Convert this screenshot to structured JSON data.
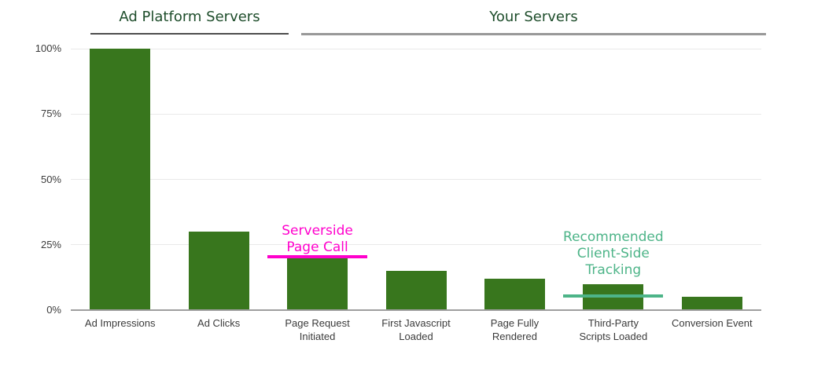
{
  "chart_data": {
    "type": "bar",
    "title": "",
    "xlabel": "",
    "ylabel": "",
    "categories": [
      "Ad Impressions",
      "Ad Clicks",
      "Page Request Initiated",
      "First Javascript Loaded",
      "Page Fully Rendered",
      "Third-Party Scripts Loaded",
      "Conversion Event"
    ],
    "values": [
      100,
      30,
      20,
      15,
      12,
      10,
      5
    ],
    "unit": "%",
    "ylim": [
      0,
      100
    ],
    "grid": true,
    "y_ticks": [
      "0%",
      "25%",
      "50%",
      "75%",
      "100%"
    ],
    "y_tick_values": [
      0,
      25,
      50,
      75,
      100
    ],
    "bar_color": "#38761d",
    "x_label_lines": [
      [
        "Ad Impressions"
      ],
      [
        "Ad Clicks"
      ],
      [
        "Page Request",
        "Initiated"
      ],
      [
        "First Javascript",
        "Loaded"
      ],
      [
        "Page Fully",
        "Rendered"
      ],
      [
        "Third-Party",
        "Scripts Loaded"
      ],
      [
        "Conversion Event"
      ]
    ],
    "group_spans": [
      {
        "label": "Ad Platform Servers",
        "categories": [
          "Ad Impressions",
          "Ad Clicks"
        ]
      },
      {
        "label": "Your Servers",
        "categories": [
          "Page Request Initiated",
          "First Javascript Loaded",
          "Page Fully Rendered",
          "Third-Party Scripts Loaded",
          "Conversion Event"
        ]
      }
    ],
    "annotations": [
      {
        "text": "Serverside Page Call",
        "lines": [
          "Serverside",
          "Page Call"
        ],
        "color": "#ff00cc",
        "at_category": "Page Request Initiated",
        "marker_value_pct": 20.5
      },
      {
        "text": "Recommended Client-Side Tracking",
        "lines": [
          "Recommended",
          "Client-Side",
          "Tracking"
        ],
        "color": "#4db488",
        "at_category": "Third-Party Scripts Loaded",
        "marker_value_pct": 5.3
      }
    ]
  },
  "colors": {
    "bar": "#38761d",
    "header_text": "#1e4d2b",
    "header_underline_left": "#4d4d4d",
    "header_underline_right": "#999999",
    "annotation_magenta": "#ff00cc",
    "annotation_teal": "#4db488",
    "gridline": "#e9e9e9",
    "axis_line": "#9e9e9e",
    "tick_label": "#3b3b3b"
  }
}
